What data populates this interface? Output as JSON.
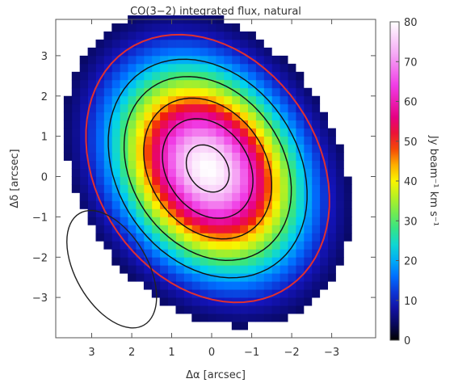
{
  "chart_data": {
    "type": "heatmap",
    "title": "CO(3−2) integrated flux, natural",
    "xlabel": "Δα [arcsec]",
    "ylabel": "Δδ [arcsec]",
    "colorbar_label": "Jy beam⁻¹ km s⁻¹",
    "xlim": [
      3.9,
      -4.1
    ],
    "ylim": [
      -4.0,
      3.9
    ],
    "x_ticks": [
      3,
      2,
      1,
      0,
      -1,
      -2,
      -3
    ],
    "x_tick_labels": [
      "3",
      "2",
      "1",
      "0",
      "−1",
      "−2",
      "−3"
    ],
    "y_ticks": [
      3,
      2,
      1,
      0,
      -1,
      -2,
      -3
    ],
    "y_tick_labels": [
      "3",
      "2",
      "1",
      "0",
      "−1",
      "−2",
      "−3"
    ],
    "colorbar_range": [
      0,
      80
    ],
    "colorbar_ticks": [
      0,
      10,
      20,
      30,
      40,
      50,
      60,
      70,
      80
    ],
    "colorbar_tick_labels": [
      "0",
      "10",
      "20",
      "30",
      "40",
      "50",
      "60",
      "70",
      "80"
    ],
    "source": {
      "center_x": 0.1,
      "center_y": 0.2,
      "peak_value": 80,
      "major_axis_sigma_arcsec": 1.75,
      "minor_axis_sigma_arcsec": 1.35,
      "position_angle_deg": 35
    },
    "contour_levels": [
      10,
      20,
      30,
      45,
      60,
      75
    ],
    "outer_contour_color": "#e03030",
    "inner_contour_color": "#111111",
    "beam": {
      "center_x": 2.5,
      "center_y": -2.3,
      "major_arcsec": 1.6,
      "minor_arcsec": 0.9,
      "position_angle_deg": 30,
      "color": "#222222"
    },
    "background": "#ffffff",
    "grid": false
  }
}
